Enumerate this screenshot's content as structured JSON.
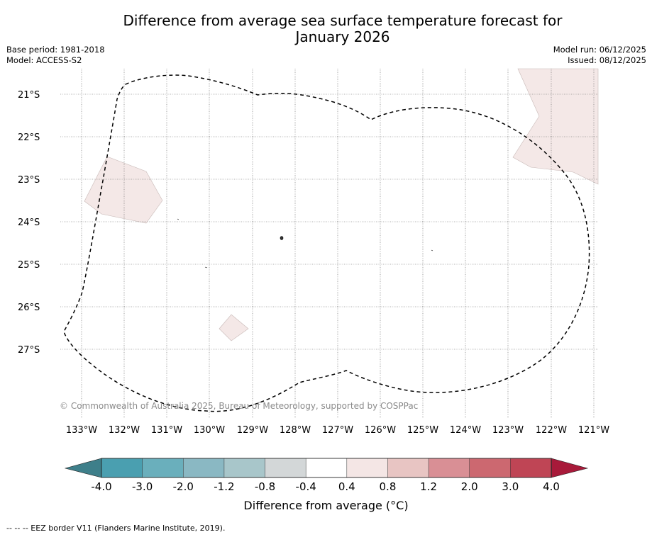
{
  "title": "Difference from average sea surface temperature forecast for\nJanuary 2026",
  "meta_left": {
    "base_period": "Base period: 1981-2018",
    "model": "Model: ACCESS-S2"
  },
  "meta_right": {
    "model_run": "Model run: 06/12/2025",
    "issued": "Issued: 08/12/2025"
  },
  "latitude_labels": [
    "21°S",
    "22°S",
    "23°S",
    "24°S",
    "25°S",
    "26°S",
    "27°S"
  ],
  "longitude_labels": [
    "133°W",
    "132°W",
    "131°W",
    "130°W",
    "129°W",
    "128°W",
    "127°W",
    "126°W",
    "125°W",
    "124°W",
    "123°W",
    "122°W",
    "121°W"
  ],
  "copyright": "© Commonwealth of Australia 2025, Bureau of Meteorology, supported by COSPPac",
  "colorbar": {
    "label": "Difference from average (",
    "unit": "°C)",
    "ticks": [
      "-4.0",
      "-3.0",
      "-2.0",
      "-1.2",
      "-0.8",
      "-0.4",
      "0.4",
      "0.8",
      "1.2",
      "2.0",
      "3.0",
      "4.0"
    ],
    "colors": [
      "#4a9fb0",
      "#6aafbc",
      "#8ab8c3",
      "#a8c6ca",
      "#d3d7d8",
      "#ffffff",
      "#f4e6e5",
      "#e8c5c3",
      "#d98f95",
      "#cc6870",
      "#bf4555"
    ],
    "under_color": "#3e7f8a",
    "over_color": "#a81a3a"
  },
  "anomaly_fill_color": "#f4e8e7",
  "footnote": "--  --  -- EEZ border V11 (Flanders Marine Institute, 2019)."
}
